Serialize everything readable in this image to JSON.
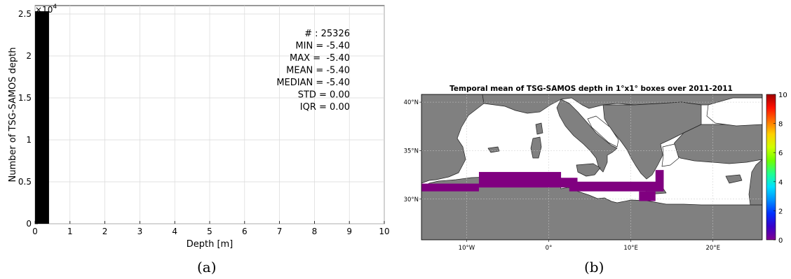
{
  "chart_data": [
    {
      "type": "bar",
      "xlabel": "Depth [m]",
      "ylabel": "Number of TSG-SAMOS depth",
      "xlim": [
        0,
        10
      ],
      "ylim": [
        0,
        26000
      ],
      "y_multiplier": "×10",
      "y_multiplier_exp": "4",
      "xticks": [
        "0",
        "1",
        "2",
        "3",
        "4",
        "5",
        "6",
        "7",
        "8",
        "9",
        "10"
      ],
      "yticks": [
        {
          "value": 0,
          "label": "0"
        },
        {
          "value": 5000,
          "label": "0.5"
        },
        {
          "value": 10000,
          "label": "1"
        },
        {
          "value": 15000,
          "label": "1.5"
        },
        {
          "value": 20000,
          "label": "2"
        },
        {
          "value": 25000,
          "label": "2.5"
        }
      ],
      "bars": [
        {
          "x0": 0,
          "x1": 0.4,
          "value": 25326
        }
      ],
      "bar_color": "#000000",
      "grid": true,
      "stats": [
        "# : 25326",
        "MIN = -5.40",
        "MAX =  -5.40",
        "MEAN = -5.40",
        "MEDIAN = -5.40",
        "STD = 0.00",
        "IQR = 0.00"
      ],
      "caption": "(a)"
    },
    {
      "type": "heatmap",
      "title": "Temporal mean of TSG-SAMOS depth in 1°x1° boxes over 2011-2011",
      "x_tick_labels": [
        "10°W",
        "0°",
        "10°E",
        "20°E"
      ],
      "x_tick_lon": [
        -10,
        0,
        10,
        20
      ],
      "y_tick_labels": [
        "30°N",
        "35°N",
        "40°N"
      ],
      "y_tick_lat": [
        30,
        35,
        40
      ],
      "lon_range": [
        -15.5,
        26
      ],
      "lat_range": [
        25.8,
        40.8
      ],
      "land_color": "#808080",
      "sea_color": "#ffffff",
      "cell_color": "#800080",
      "colorbar_ticks": [
        "0",
        "2",
        "4",
        "6",
        "8",
        "10"
      ],
      "colorbar_range": [
        0,
        10
      ],
      "colorbar_colors": [
        "#80008f",
        "#3a00c8",
        "#0030ff",
        "#0090ff",
        "#00e0ff",
        "#20ff90",
        "#70ff00",
        "#d0ff00",
        "#ffd000",
        "#ff7000",
        "#ff1000",
        "#a00000"
      ],
      "cells": [
        {
          "lon": [
            -15.5,
            -8.5
          ],
          "lat": [
            30.8,
            31.6
          ],
          "value": 0
        },
        {
          "lon": [
            -8.5,
            1.5
          ],
          "lat": [
            31.6,
            32.8
          ],
          "value": 0
        },
        {
          "lon": [
            -8.5,
            3.5
          ],
          "lat": [
            31.2,
            32.2
          ],
          "value": 0
        },
        {
          "lon": [
            2.5,
            13.5
          ],
          "lat": [
            30.8,
            31.8
          ],
          "value": 0
        },
        {
          "lon": [
            11,
            13
          ],
          "lat": [
            29.8,
            30.8
          ],
          "value": 0
        },
        {
          "lon": [
            13,
            14
          ],
          "lat": [
            30.8,
            33
          ],
          "value": 0
        }
      ],
      "caption": "(b)"
    }
  ]
}
